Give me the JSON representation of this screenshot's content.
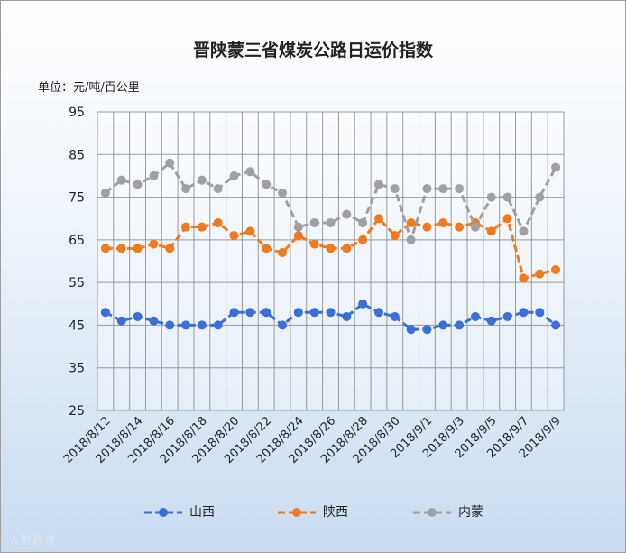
{
  "title": "晋陕蒙三省煤炭公路日运价指数",
  "unit_label": "单位：元/吨/百公里",
  "watermark": "大数跨境",
  "chart_data": {
    "type": "line",
    "title": "晋陕蒙三省煤炭公路日运价指数",
    "ylabel": "单位：元/吨/百公里",
    "ylim": [
      25,
      95
    ],
    "yticks": [
      95,
      85,
      75,
      65,
      55,
      45,
      35,
      25
    ],
    "grid": true,
    "legend_position": "bottom",
    "x": [
      "2018/8/12",
      "2018/8/13",
      "2018/8/14",
      "2018/8/15",
      "2018/8/16",
      "2018/8/17",
      "2018/8/18",
      "2018/8/19",
      "2018/8/20",
      "2018/8/21",
      "2018/8/22",
      "2018/8/23",
      "2018/8/24",
      "2018/8/25",
      "2018/8/26",
      "2018/8/27",
      "2018/8/28",
      "2018/8/29",
      "2018/8/30",
      "2018/8/31",
      "2018/9/1",
      "2018/9/2",
      "2018/9/3",
      "2018/9/4",
      "2018/9/5",
      "2018/9/6",
      "2018/9/7",
      "2018/9/8",
      "2018/9/9"
    ],
    "xtick_labels": [
      "2018/8/12",
      "2018/8/14",
      "2018/8/16",
      "2018/8/18",
      "2018/8/20",
      "2018/8/22",
      "2018/8/24",
      "2018/8/26",
      "2018/8/28",
      "2018/8/30",
      "2018/9/1",
      "2018/9/3",
      "2018/9/5",
      "2018/9/7",
      "2018/9/9"
    ],
    "series": [
      {
        "name": "山西",
        "color": "#3a6fd8",
        "values": [
          48,
          46,
          47,
          46,
          45,
          45,
          45,
          45,
          48,
          48,
          48,
          45,
          48,
          48,
          48,
          47,
          50,
          48,
          47,
          44,
          44,
          45,
          45,
          47,
          46,
          47,
          48,
          48,
          45
        ]
      },
      {
        "name": "陕西",
        "color": "#f07a1e",
        "values": [
          63,
          63,
          63,
          64,
          63,
          68,
          68,
          69,
          66,
          67,
          63,
          62,
          66,
          64,
          63,
          63,
          65,
          70,
          66,
          69,
          68,
          69,
          68,
          69,
          67,
          70,
          56,
          57,
          58
        ]
      },
      {
        "name": "内蒙",
        "color": "#a0a0a0",
        "values": [
          76,
          79,
          78,
          80,
          83,
          77,
          79,
          77,
          80,
          81,
          78,
          76,
          68,
          69,
          69,
          71,
          69,
          78,
          77,
          65,
          77,
          77,
          77,
          68,
          75,
          75,
          67,
          75,
          82
        ]
      }
    ]
  }
}
